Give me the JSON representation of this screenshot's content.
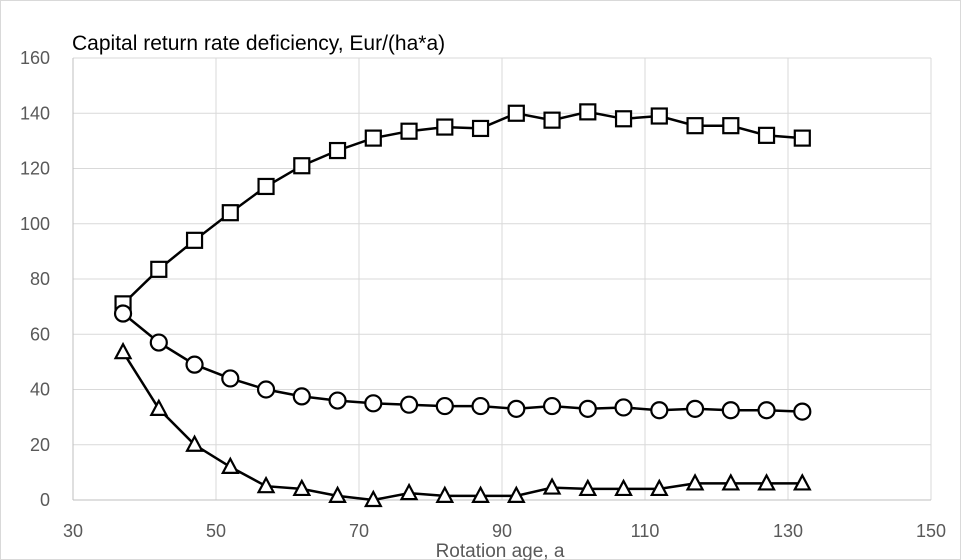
{
  "chart_data": {
    "type": "line",
    "title": "Capital return rate deficiency,  Eur/(ha*a)",
    "xlabel": "Rotation age, a",
    "ylabel": "",
    "xlim": [
      30,
      150
    ],
    "ylim": [
      0,
      160
    ],
    "xticks": [
      30,
      50,
      70,
      90,
      110,
      130,
      150
    ],
    "yticks": [
      0,
      20,
      40,
      60,
      80,
      100,
      120,
      140,
      160
    ],
    "grid": true,
    "legend": "none",
    "series": [
      {
        "marker": "square",
        "color": "#000000",
        "x": [
          37,
          42,
          47,
          52,
          57,
          62,
          67,
          72,
          77,
          82,
          87,
          92,
          97,
          102,
          107,
          112,
          117,
          122,
          127,
          132
        ],
        "y": [
          71,
          83.5,
          94,
          104,
          113.5,
          121,
          126.5,
          131,
          133.5,
          135,
          134.5,
          140,
          137.5,
          140.5,
          138,
          139,
          135.5,
          135.5,
          132,
          131
        ]
      },
      {
        "marker": "circle",
        "color": "#000000",
        "x": [
          37,
          42,
          47,
          52,
          57,
          62,
          67,
          72,
          77,
          82,
          87,
          92,
          97,
          102,
          107,
          112,
          117,
          122,
          127,
          132
        ],
        "y": [
          67.5,
          57,
          49,
          44,
          40,
          37.5,
          36,
          35,
          34.5,
          34,
          34,
          33,
          34,
          33,
          33.5,
          32.5,
          33,
          32.5,
          32.5,
          32
        ]
      },
      {
        "marker": "triangle",
        "color": "#000000",
        "x": [
          37,
          42,
          47,
          52,
          57,
          62,
          67,
          72,
          77,
          82,
          87,
          92,
          97,
          102,
          107,
          112,
          117,
          122,
          127,
          132
        ],
        "y": [
          53.5,
          33,
          20,
          12,
          5,
          4,
          1.5,
          0,
          2.5,
          1.5,
          1.5,
          1.5,
          4.5,
          4,
          4,
          4,
          6,
          6,
          6,
          6
        ]
      }
    ]
  }
}
